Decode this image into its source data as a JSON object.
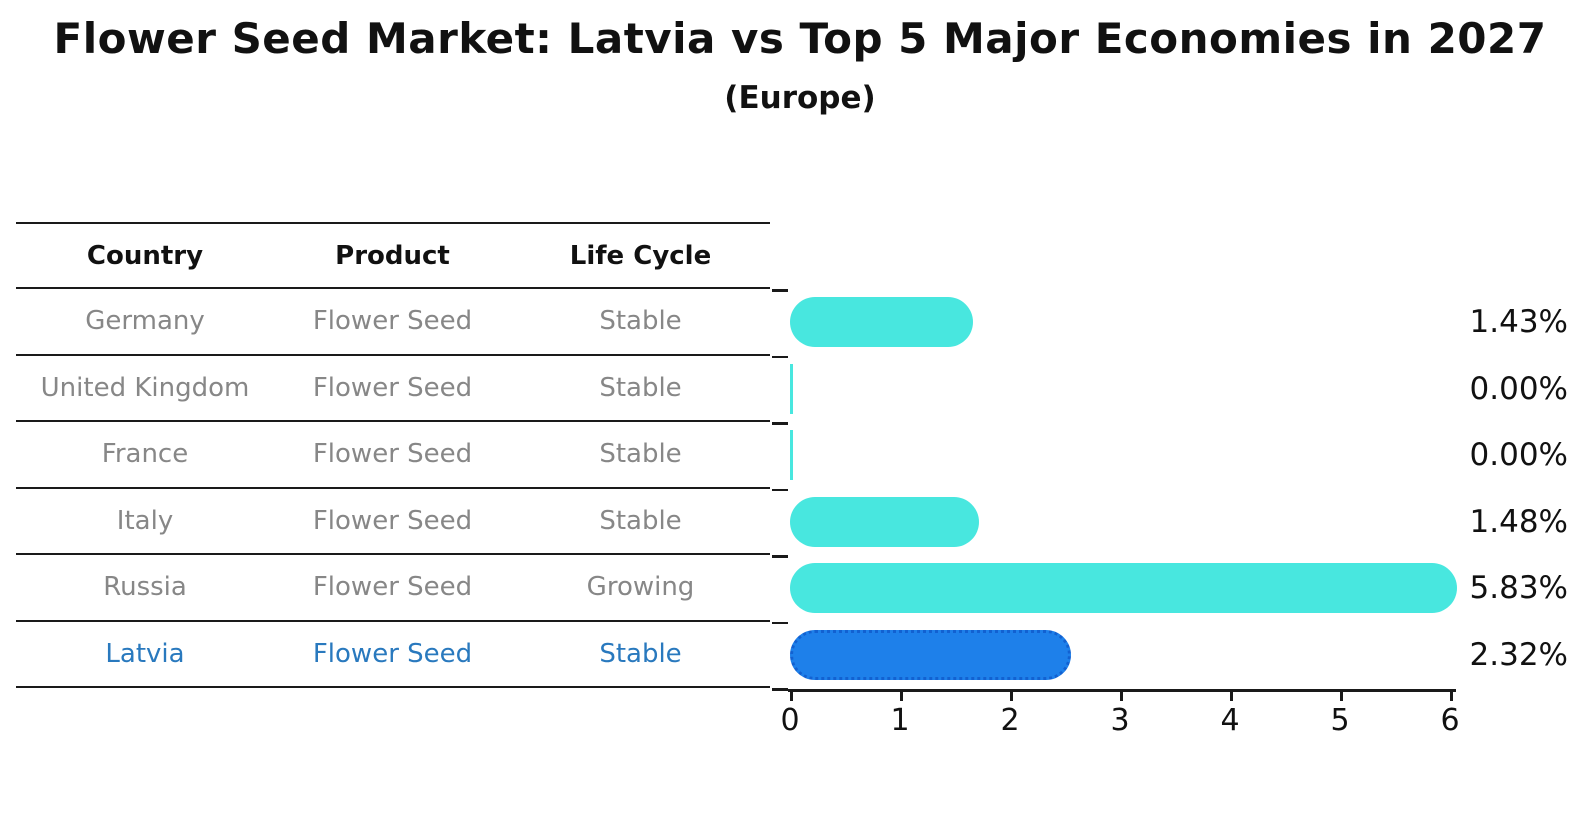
{
  "title": "Flower Seed Market: Latvia vs Top 5 Major Economies in 2027",
  "subtitle": "(Europe)",
  "table": {
    "headers": [
      "Country",
      "Product",
      "Life Cycle"
    ],
    "rows": [
      {
        "country": "Germany",
        "product": "Flower Seed",
        "life_cycle": "Stable",
        "highlight": false
      },
      {
        "country": "United Kingdom",
        "product": "Flower Seed",
        "life_cycle": "Stable",
        "highlight": false
      },
      {
        "country": "France",
        "product": "Flower Seed",
        "life_cycle": "Stable",
        "highlight": false
      },
      {
        "country": "Italy",
        "product": "Flower Seed",
        "life_cycle": "Stable",
        "highlight": false
      },
      {
        "country": "Russia",
        "product": "Flower Seed",
        "life_cycle": "Growing",
        "highlight": false
      },
      {
        "country": "Latvia",
        "product": "Flower Seed",
        "life_cycle": "Stable",
        "highlight": true
      }
    ]
  },
  "chart_data": {
    "type": "bar",
    "orientation": "horizontal",
    "title": "Flower Seed Market: Latvia vs Top 5 Major Economies in 2027 (Europe)",
    "categories": [
      "Germany",
      "United Kingdom",
      "France",
      "Italy",
      "Russia",
      "Latvia"
    ],
    "values": [
      1.43,
      0.0,
      0.0,
      1.48,
      5.83,
      2.32
    ],
    "value_labels": [
      "1.43%",
      "0.00%",
      "0.00%",
      "1.48%",
      "5.83%",
      "2.32%"
    ],
    "xlabel": "",
    "ylabel": "",
    "xlim": [
      0,
      6
    ],
    "x_ticks": [
      0,
      1,
      2,
      3,
      4,
      5,
      6
    ],
    "grid": false,
    "legend": false,
    "highlight_index": 5
  },
  "colors": {
    "bar_default": "#48E7DF",
    "bar_highlight": "#1E80EA",
    "bar_highlight_border": "#1261D1",
    "text_default": "#111111",
    "text_muted": "#878787",
    "text_highlight": "#2979BE"
  }
}
